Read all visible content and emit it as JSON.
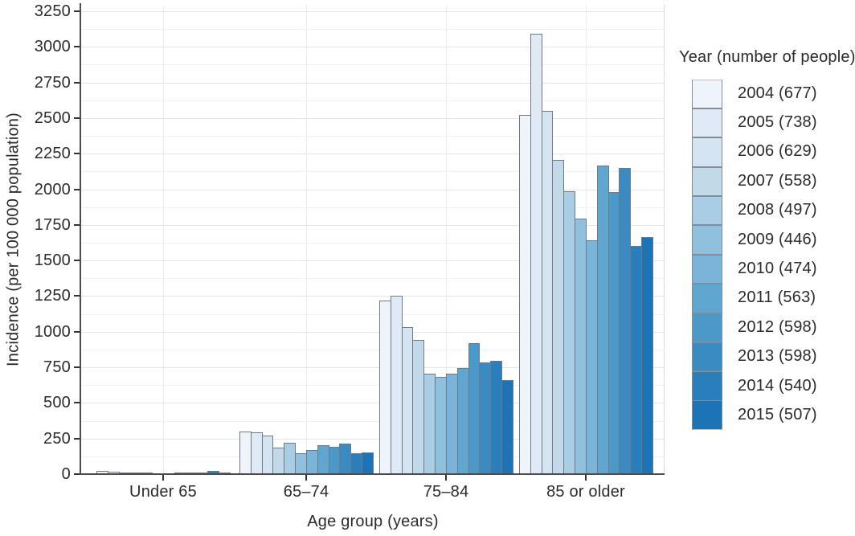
{
  "chart_data": {
    "type": "bar",
    "title": "",
    "xlabel": "Age group (years)",
    "ylabel": "Incidence (per 100 000 population)",
    "categories": [
      "Under 65",
      "65–74",
      "75–84",
      "85 or older"
    ],
    "y_axis": {
      "min": 0,
      "max": 3250,
      "major_step": 250,
      "minor_step": 125,
      "grid": true
    },
    "y_ticks": [
      0,
      250,
      500,
      750,
      1000,
      1250,
      1500,
      1750,
      2000,
      2250,
      2500,
      2750,
      3000,
      3250
    ],
    "legend": {
      "title": "Year (number of people)",
      "position": "right"
    },
    "series": [
      {
        "year": "2004",
        "count": 677,
        "label": "2004 (677)",
        "color": "#eff4fb",
        "values": [
          20,
          300,
          1220,
          2525
        ]
      },
      {
        "year": "2005",
        "count": 738,
        "label": "2005 (738)",
        "color": "#e0eaf6",
        "values": [
          18,
          295,
          1250,
          3090
        ]
      },
      {
        "year": "2006",
        "count": 629,
        "label": "2006 (629)",
        "color": "#d4e4f2",
        "values": [
          14,
          270,
          1030,
          2550
        ]
      },
      {
        "year": "2007",
        "count": 558,
        "label": "2007 (558)",
        "color": "#c2d9ea",
        "values": [
          11,
          185,
          945,
          2205
        ]
      },
      {
        "year": "2008",
        "count": 497,
        "label": "2008 (497)",
        "color": "#a9cde4",
        "values": [
          9,
          218,
          705,
          1985
        ]
      },
      {
        "year": "2009",
        "count": 446,
        "label": "2009 (446)",
        "color": "#8fc0de",
        "values": [
          8,
          145,
          680,
          1795
        ]
      },
      {
        "year": "2010",
        "count": 474,
        "label": "2010 (474)",
        "color": "#7ab5d9",
        "values": [
          8,
          168,
          705,
          1640
        ]
      },
      {
        "year": "2011",
        "count": 563,
        "label": "2011 (563)",
        "color": "#5fa7d1",
        "values": [
          10,
          202,
          745,
          2165
        ]
      },
      {
        "year": "2012",
        "count": 598,
        "label": "2012 (598)",
        "color": "#4c99c9",
        "values": [
          11,
          193,
          920,
          1980
        ]
      },
      {
        "year": "2013",
        "count": 598,
        "label": "2013 (598)",
        "color": "#3a8bc2",
        "values": [
          13,
          215,
          785,
          2150
        ]
      },
      {
        "year": "2014",
        "count": 540,
        "label": "2014 (540)",
        "color": "#2a7ebb",
        "values": [
          20,
          145,
          795,
          1605
        ]
      },
      {
        "year": "2015",
        "count": 507,
        "label": "2015 (507)",
        "color": "#1c73b5",
        "values": [
          12,
          152,
          660,
          1665
        ]
      }
    ]
  }
}
